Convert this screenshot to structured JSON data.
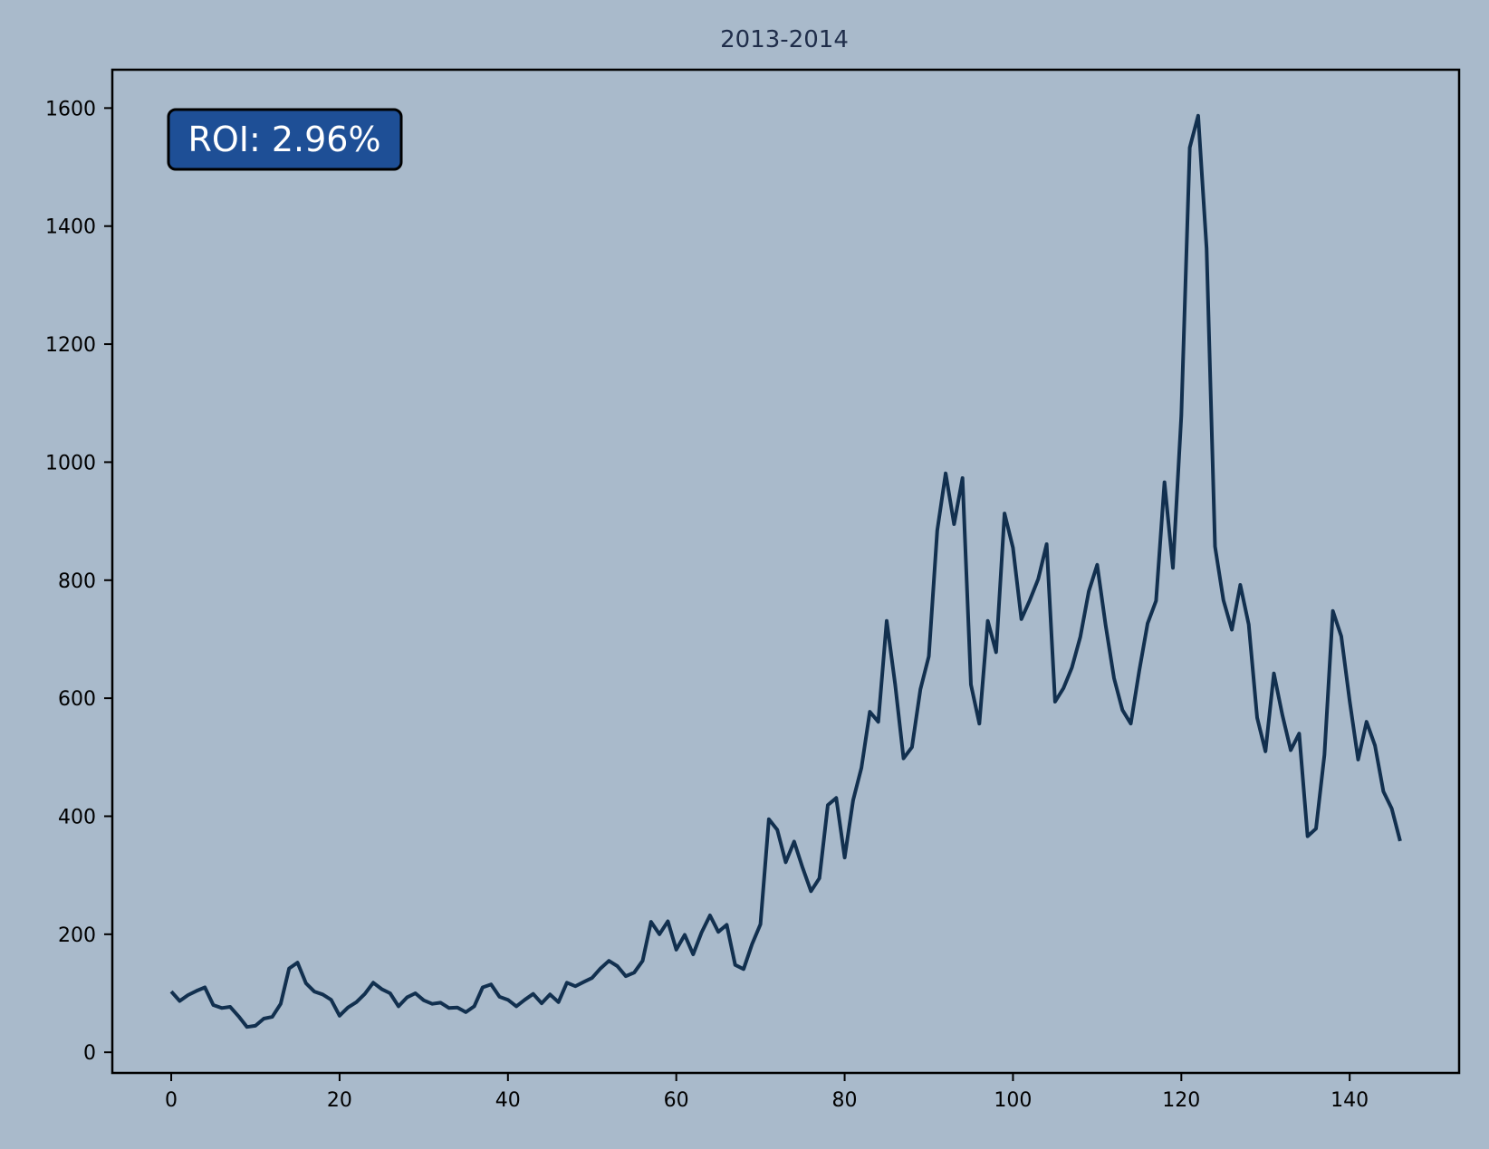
{
  "colors": {
    "background": "#a9bacb",
    "line": "#12304f",
    "axis": "#000000",
    "title": "#1f2d4a",
    "roi_box": "#1e4f96",
    "roi_border": "#000000",
    "roi_text": "#ffffff"
  },
  "chart_data": {
    "type": "line",
    "title": "2013-2014",
    "xlabel": "",
    "ylabel": "",
    "xlim": [
      -7,
      153
    ],
    "ylim": [
      -35,
      1665
    ],
    "grid": false,
    "xticks": [
      0,
      20,
      40,
      60,
      80,
      100,
      120,
      140
    ],
    "yticks": [
      0,
      200,
      400,
      600,
      800,
      1000,
      1200,
      1400,
      1600
    ],
    "annotation": {
      "text": "ROI: 2.96%",
      "position": "top-left"
    },
    "series": [
      {
        "name": "",
        "x_start": 0,
        "values": [
          103,
          87,
          97,
          104,
          110,
          80,
          75,
          77,
          61,
          43,
          45,
          57,
          60,
          82,
          142,
          152,
          117,
          103,
          98,
          89,
          62,
          76,
          85,
          99,
          118,
          107,
          100,
          78,
          93,
          100,
          88,
          82,
          84,
          75,
          76,
          68,
          78,
          110,
          115,
          94,
          89,
          78,
          89,
          99,
          83,
          98,
          85,
          118,
          112,
          119,
          126,
          142,
          155,
          146,
          129,
          135,
          155,
          221,
          200,
          222,
          174,
          199,
          166,
          203,
          232,
          204,
          216,
          148,
          141,
          183,
          217,
          395,
          377,
          322,
          357,
          313,
          273,
          295,
          419,
          431,
          330,
          427,
          482,
          577,
          560,
          731,
          624,
          498,
          517,
          615,
          671,
          884,
          981,
          895,
          973,
          623,
          557,
          731,
          678,
          913,
          855,
          734,
          766,
          802,
          861,
          594,
          617,
          652,
          704,
          781,
          826,
          724,
          634,
          580,
          557,
          646,
          727,
          765,
          966,
          821,
          1079,
          1533,
          1587,
          1362,
          857,
          766,
          716,
          792,
          725,
          567,
          510,
          642,
          572,
          512,
          540,
          366,
          379,
          504,
          748,
          705,
          595,
          496,
          560,
          520,
          442,
          413,
          358
        ]
      }
    ]
  }
}
